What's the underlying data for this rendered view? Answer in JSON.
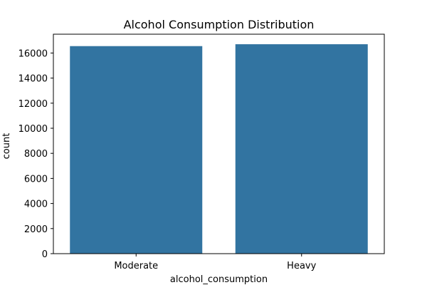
{
  "chart_data": {
    "type": "bar",
    "title": "Alcohol Consumption Distribution",
    "xlabel": "alcohol_consumption",
    "ylabel": "count",
    "categories": [
      "Moderate",
      "Heavy"
    ],
    "values": [
      16550,
      16700
    ],
    "ylim": [
      0,
      17500
    ],
    "yticks": [
      0,
      2000,
      4000,
      6000,
      8000,
      10000,
      12000,
      14000,
      16000
    ],
    "ytick_labels": [
      "0",
      "2000",
      "4000",
      "6000",
      "8000",
      "10000",
      "12000",
      "14000",
      "16000"
    ],
    "bar_color": "#3274a1",
    "grid": false,
    "legend": "none"
  }
}
